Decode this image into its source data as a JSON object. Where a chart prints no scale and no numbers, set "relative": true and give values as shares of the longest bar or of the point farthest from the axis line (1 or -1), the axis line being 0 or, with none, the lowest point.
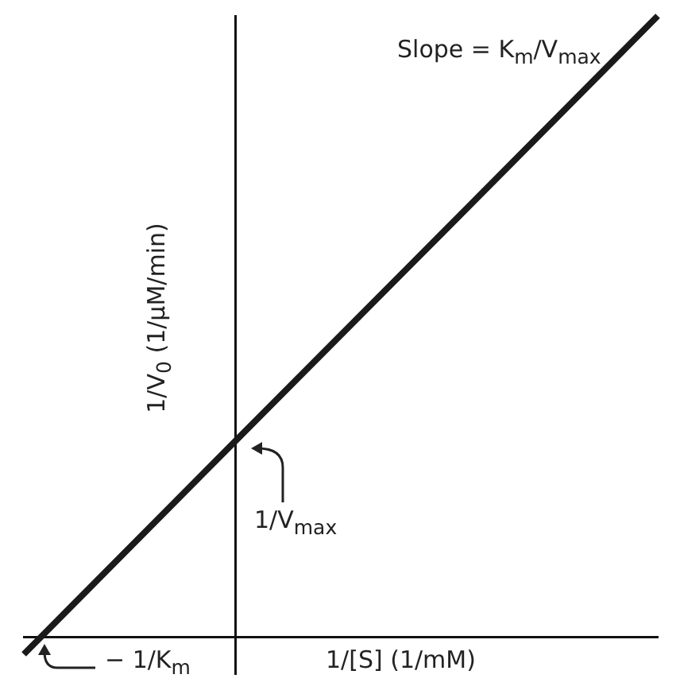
{
  "chart_data": {
    "type": "line",
    "relative": true,
    "categories": [
      null,
      null,
      null,
      null
    ],
    "series": [
      {
        "color": "#1a1a1a",
        "values": [
          -0.028,
          0.315,
          0.657,
          1.0
        ]
      }
    ],
    "xlabel": "1/[S] (1/mM)",
    "ylabel": "1/V$_{0}$ (1/μM/min)",
    "annotations": [
      "Slope = K$_{m}$/V$_{max}$",
      "1/V$_{max}$",
      "− 1/K$_{m}$"
    ],
    "grid": false,
    "legend": false
  }
}
